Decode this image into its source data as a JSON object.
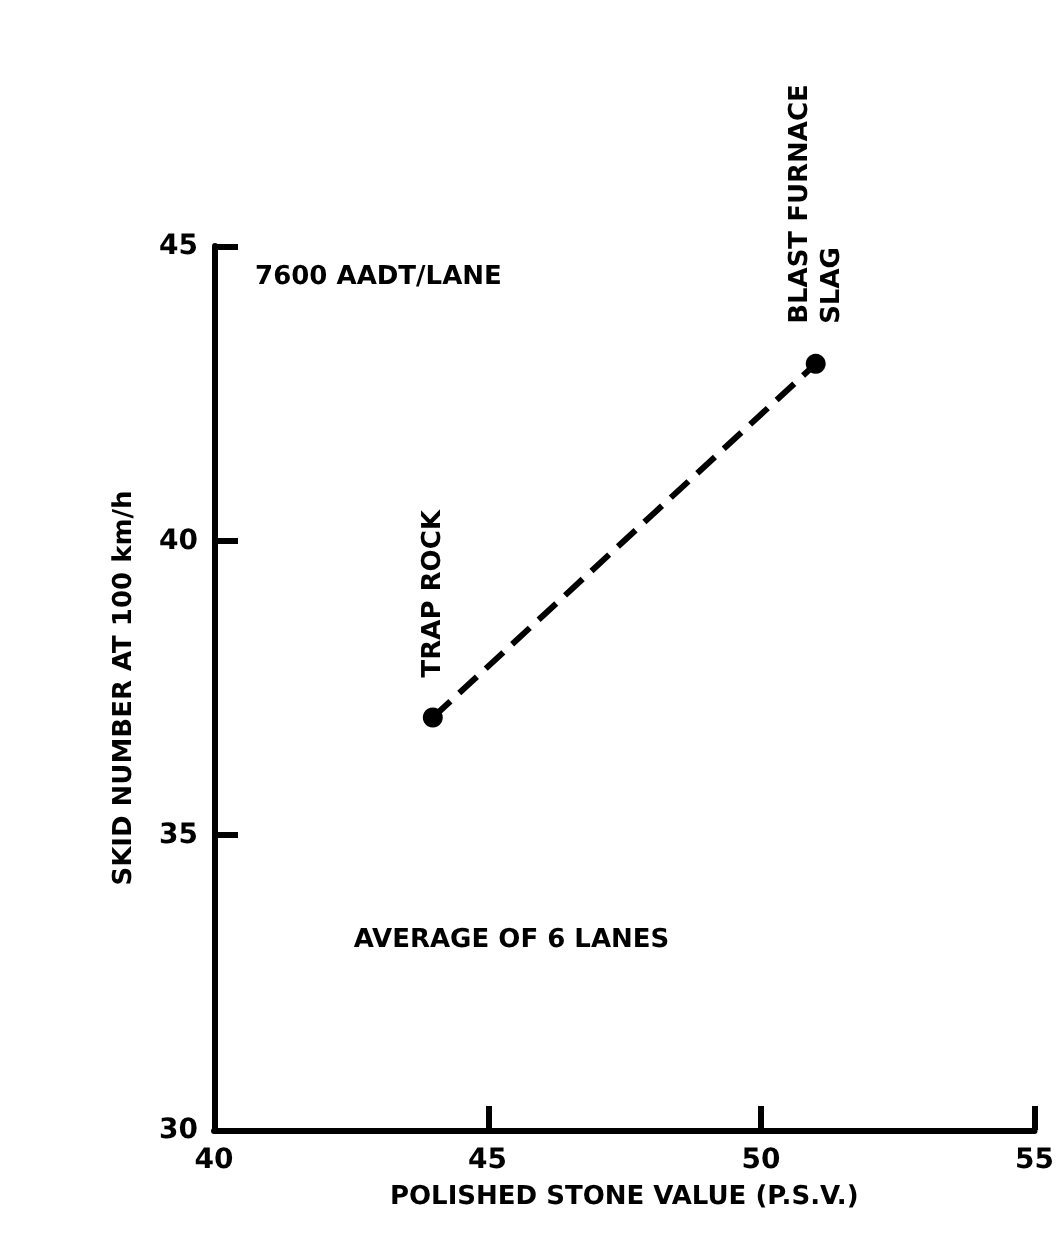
{
  "chart_data": {
    "type": "line",
    "xlabel": "POLISHED STONE VALUE (P.S.V.)",
    "ylabel": "SKID NUMBER AT 100 km/h",
    "x": [
      44,
      51
    ],
    "series": [
      {
        "color": "#000000",
        "values": [
          37,
          43
        ]
      }
    ],
    "xlim": [
      40,
      55
    ],
    "xticks": [
      40,
      45,
      50,
      55
    ],
    "ylim": [
      30,
      45
    ],
    "yticks": [
      30,
      35,
      40,
      45
    ],
    "grid": false,
    "marker": "circle",
    "line_style": "dashed",
    "annotations": [
      "7600 AADT/LANE",
      "AVERAGE OF 6 LANES",
      {
        "text": "TRAP ROCK",
        "x": 44,
        "y": 37
      },
      {
        "text": "BLAST FURNACE\nSLAG",
        "x": 51,
        "y": 43
      }
    ]
  }
}
